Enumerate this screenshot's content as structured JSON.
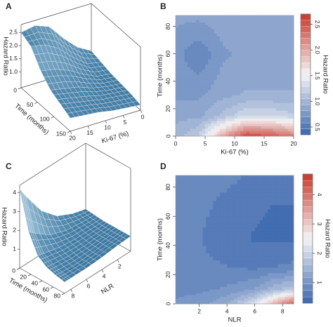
{
  "chart_data": [
    {
      "type": "surface3d",
      "panel": "A",
      "x_label": "Ki-67 (%)",
      "y_label": "Time (months)",
      "z_label": "Hazard Ratio",
      "x": [
        0,
        4,
        8,
        12,
        16,
        20
      ],
      "y": [
        0,
        30,
        60,
        90,
        120,
        150
      ],
      "z": [
        [
          1.0,
          1.3,
          1.8,
          2.4,
          2.6,
          2.5
        ],
        [
          0.9,
          1.0,
          1.4,
          1.9,
          2.2,
          2.3
        ],
        [
          0.8,
          0.85,
          1.1,
          1.4,
          1.6,
          1.7
        ],
        [
          0.75,
          0.8,
          0.9,
          1.1,
          1.2,
          1.3
        ],
        [
          0.7,
          0.75,
          0.8,
          0.9,
          1.0,
          1.1
        ],
        [
          0.6,
          0.65,
          0.7,
          0.8,
          0.85,
          0.9
        ]
      ],
      "xlim": [
        0,
        20
      ],
      "ylim": [
        0,
        150
      ],
      "zlim": [
        0.4,
        2.8
      ],
      "xticks": [
        0,
        5,
        10,
        15,
        20
      ],
      "yticks": [
        0,
        50,
        100,
        150
      ],
      "zticks": [
        {
          "value": 1,
          "label": "1.0"
        },
        1.5,
        {
          "value": 2,
          "label": "2.0"
        },
        2.5
      ],
      "color": "#2d6c98"
    },
    {
      "type": "contour",
      "panel": "B",
      "x_label": "Ki-67 (%)",
      "y_label": "Time (months)",
      "colorbar_label": "Hazard Ratio",
      "x": [
        0,
        4,
        8,
        12,
        16,
        20
      ],
      "y": [
        0,
        15,
        30,
        45,
        60,
        75,
        88
      ],
      "z": [
        [
          1.0,
          1.2,
          2.0,
          2.6,
          2.5,
          2.3
        ],
        [
          0.9,
          0.9,
          1.1,
          1.3,
          1.3,
          1.2
        ],
        [
          0.8,
          0.8,
          0.9,
          0.95,
          0.95,
          0.95
        ],
        [
          0.75,
          0.7,
          0.85,
          0.9,
          0.9,
          0.9
        ],
        [
          0.75,
          0.6,
          0.8,
          0.85,
          0.9,
          0.9
        ],
        [
          0.8,
          0.75,
          0.85,
          0.85,
          0.9,
          0.9
        ],
        [
          0.85,
          0.85,
          0.9,
          0.9,
          0.9,
          0.9
        ]
      ],
      "xlim": [
        0,
        20
      ],
      "ylim": [
        0,
        88
      ],
      "xticks": [
        0,
        5,
        10,
        15,
        20
      ],
      "yticks": [
        0,
        20,
        40,
        60,
        80
      ],
      "clim": [
        0.35,
        2.7
      ],
      "cticks": [
        0.5,
        {
          "value": 1,
          "label": "1.0"
        },
        1.5,
        {
          "value": 2,
          "label": "2.0"
        },
        2.5
      ],
      "colors": [
        "#3a66ad",
        "#f4f4f6",
        "#c8372a"
      ]
    },
    {
      "type": "surface3d",
      "panel": "C",
      "x_label": "NLR",
      "y_label": "Time (months)",
      "z_label": "Hazard Ratio",
      "x": [
        0.3,
        2,
        4,
        6,
        8,
        8.8
      ],
      "y": [
        0,
        16,
        32,
        48,
        64,
        80
      ],
      "z": [
        [
          0.9,
          1.1,
          1.5,
          2.3,
          3.6,
          4.2
        ],
        [
          0.85,
          0.9,
          1.0,
          1.3,
          1.9,
          2.2
        ],
        [
          0.8,
          0.8,
          0.8,
          0.9,
          1.1,
          1.2
        ],
        [
          0.8,
          0.75,
          0.7,
          0.7,
          0.8,
          0.85
        ],
        [
          0.8,
          0.75,
          0.65,
          0.6,
          0.65,
          0.7
        ],
        [
          0.8,
          0.75,
          0.65,
          0.6,
          0.6,
          0.6
        ]
      ],
      "xlim": [
        0.3,
        8.8
      ],
      "ylim": [
        0,
        80
      ],
      "zlim": [
        0,
        4.4
      ],
      "xticks": [
        2,
        4,
        6,
        8
      ],
      "yticks": [
        0,
        20,
        40,
        60,
        80
      ],
      "zticks": [
        1,
        2,
        3,
        4
      ],
      "color": "#2d6c98"
    },
    {
      "type": "contour",
      "panel": "D",
      "x_label": "NLR",
      "y_label": "Time (months)",
      "colorbar_label": "Hazard Ratio",
      "x": [
        0.3,
        2,
        4,
        6,
        7.5,
        8.8
      ],
      "y": [
        0,
        10,
        25,
        45,
        65,
        88
      ],
      "z": [
        [
          1.0,
          1.1,
          1.4,
          2.2,
          3.4,
          4.3
        ],
        [
          0.9,
          0.9,
          1.0,
          1.2,
          1.6,
          1.8
        ],
        [
          0.9,
          0.8,
          0.75,
          0.7,
          0.75,
          0.8
        ],
        [
          0.9,
          0.75,
          0.6,
          0.5,
          0.5,
          0.5
        ],
        [
          0.9,
          0.8,
          0.65,
          0.55,
          0.5,
          0.5
        ],
        [
          0.95,
          0.9,
          0.8,
          0.7,
          0.65,
          0.65
        ]
      ],
      "xlim": [
        0.3,
        8.8
      ],
      "ylim": [
        0,
        88
      ],
      "xticks": [
        2,
        4,
        6,
        8
      ],
      "yticks": [
        0,
        20,
        40,
        60,
        80
      ],
      "clim": [
        0.3,
        4.7
      ],
      "cticks": [
        1,
        2,
        3,
        4
      ],
      "colors": [
        "#3a66ad",
        "#f4f4f6",
        "#c8372a"
      ]
    }
  ]
}
